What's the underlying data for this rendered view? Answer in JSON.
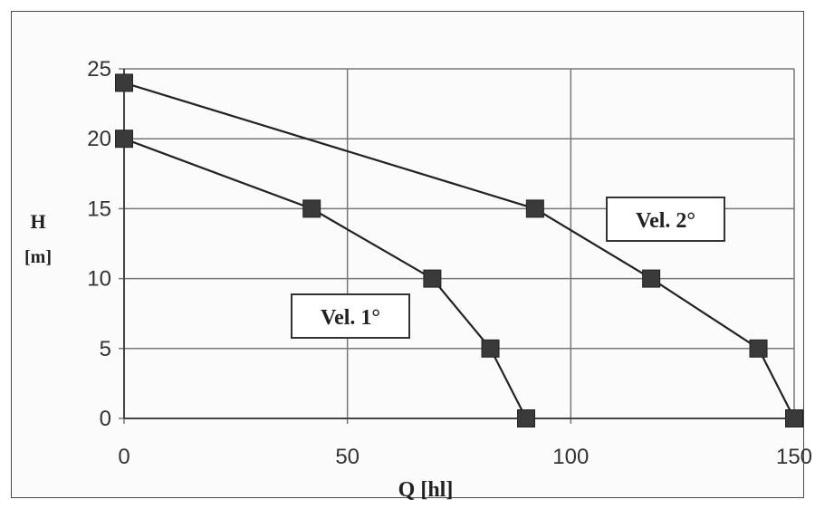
{
  "chart_data": {
    "type": "line",
    "xlabel": "Q [hl]",
    "ylabel": [
      "H",
      "[m]"
    ],
    "xlim": [
      0,
      150
    ],
    "ylim": [
      0,
      25
    ],
    "x_ticks": [
      "0",
      "50",
      "100",
      "150"
    ],
    "y_ticks": [
      "0",
      "5",
      "10",
      "15",
      "20",
      "25"
    ],
    "grid": true,
    "series": [
      {
        "name": "Vel. 1°",
        "x": [
          0,
          42,
          69,
          82,
          90
        ],
        "y": [
          20,
          15,
          10,
          5,
          0
        ]
      },
      {
        "name": "Vel. 2°",
        "x": [
          0,
          92,
          118,
          142,
          150
        ],
        "y": [
          24,
          15,
          10,
          5,
          0
        ]
      }
    ],
    "annotations": [
      "Vel. 1°",
      "Vel. 2°"
    ]
  }
}
